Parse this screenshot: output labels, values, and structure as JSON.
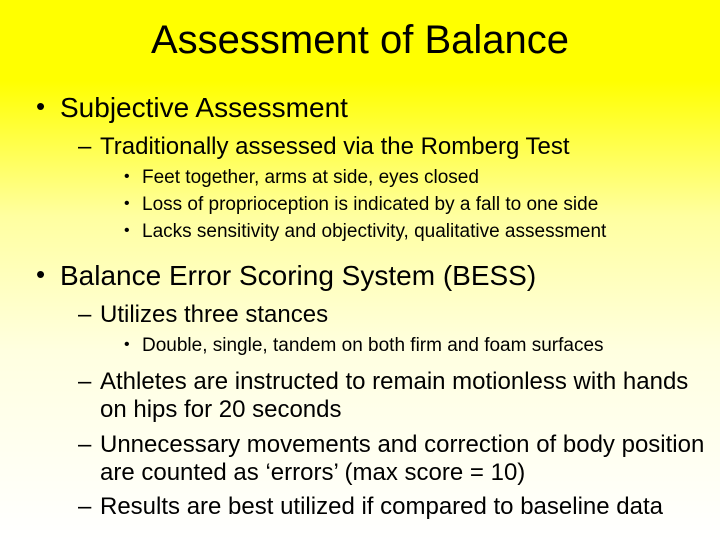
{
  "slide": {
    "background_gradient": {
      "top": "#ffff00",
      "bottom": "#ffffff"
    },
    "title": {
      "text": "Assessment of Balance",
      "fontsize": 40,
      "align": "center"
    },
    "bullets": [
      {
        "level": 1,
        "text": "Subjective Assessment"
      },
      {
        "level": 2,
        "text": "Traditionally assessed via the Romberg Test"
      },
      {
        "level": 3,
        "text": "Feet together, arms at side, eyes closed"
      },
      {
        "level": 3,
        "text": "Loss of proprioception is indicated by a fall to one side"
      },
      {
        "level": 3,
        "text": "Lacks sensitivity and objectivity, qualitative assessment"
      },
      {
        "level": 1,
        "text": "Balance Error Scoring System (BESS)"
      },
      {
        "level": 2,
        "text": "Utilizes three stances"
      },
      {
        "level": 3,
        "text": "Double, single, tandem on both firm and foam surfaces"
      },
      {
        "level": 2,
        "text": "Athletes are instructed to remain motionless with hands on  hips for 20 seconds"
      },
      {
        "level": 2,
        "text": "Unnecessary movements and correction of body position are counted as ‘errors’ (max score = 10)"
      },
      {
        "level": 2,
        "text": "Results are best utilized if compared to baseline data"
      }
    ],
    "typography": {
      "font_family": "Arial",
      "lvl1_fontsize": 28,
      "lvl2_fontsize": 24,
      "lvl3_fontsize": 19,
      "text_color": "#000000"
    }
  }
}
